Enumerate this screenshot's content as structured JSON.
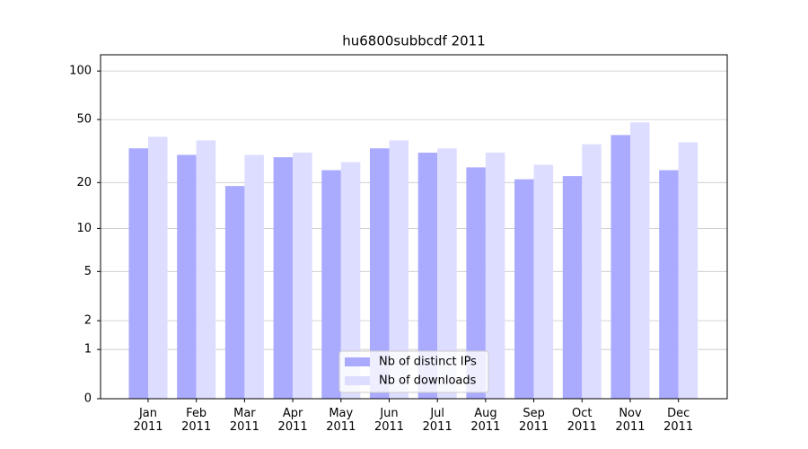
{
  "chart_data": {
    "type": "bar",
    "title": "hu6800subbcdf 2011",
    "categories": [
      "Jan\n2011",
      "Feb\n2011",
      "Mar\n2011",
      "Apr\n2011",
      "May\n2011",
      "Jun\n2011",
      "Jul\n2011",
      "Aug\n2011",
      "Sep\n2011",
      "Oct\n2011",
      "Nov\n2011",
      "Dec\n2011"
    ],
    "series": [
      {
        "name": "Nb of distinct IPs",
        "color": "#aaaaff",
        "values": [
          33,
          30,
          19,
          29,
          24,
          33,
          31,
          25,
          21,
          22,
          40,
          24
        ]
      },
      {
        "name": "Nb of downloads",
        "color": "#ddddff",
        "values": [
          39,
          37,
          30,
          31,
          27,
          37,
          33,
          31,
          26,
          35,
          48,
          36
        ]
      }
    ],
    "yscale": "log1p",
    "ylim": [
      0,
      126
    ],
    "yticks": [
      0,
      1,
      2,
      5,
      10,
      20,
      50,
      100
    ],
    "grid": true,
    "legend": "lower center"
  }
}
